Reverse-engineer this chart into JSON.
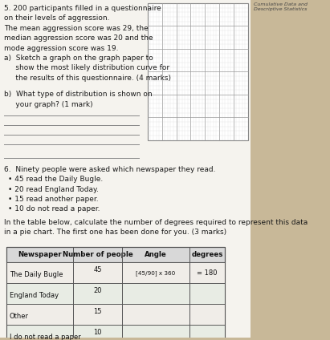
{
  "title_top": "Cumulative Data and Descriptive Statistics",
  "q5_text_lines": [
    "5. 200 participants filled in a questionnaire",
    "on their levels of aggression.",
    "The mean aggression score was 29, the",
    "median aggression score was 20 and the",
    "mode aggression score was 19.",
    "a)  Sketch a graph on the graph paper to",
    "     show the most likely distribution curve for",
    "     the results of this questionnaire. (4 marks)"
  ],
  "q5b_text_lines": [
    "b)  What type of distribution is shown on",
    "     your graph? (1 mark)"
  ],
  "q6_intro": "6.  Ninety people were asked which newspaper they read.",
  "q6_bullets": [
    "45 read the Daily Bugle.",
    "20 read England Today.",
    "15 read another paper.",
    "10 do not read a paper."
  ],
  "q6_footer_lines": [
    "In the table below, calculate the number of degrees required to represent this data",
    "in a pie chart. The first one has been done for you. (3 marks)"
  ],
  "table_headers": [
    "Newspaper",
    "Number of people",
    "Angle",
    "degrees"
  ],
  "table_rows": [
    [
      "The Daily Bugle",
      "45",
      "[45/90] x 360",
      "= 180"
    ],
    [
      "England Today",
      "20",
      "",
      ""
    ],
    [
      "Other",
      "15",
      "",
      ""
    ],
    [
      "I do not read a paper",
      "10",
      "",
      ""
    ]
  ],
  "page_bg": "#c8b898",
  "white_bg": "#f5f3ee",
  "text_color": "#1a1a1a",
  "grid_line_major": "#999999",
  "grid_line_minor": "#cccccc",
  "table_header_bg": "#d8d8d8",
  "table_row1_bg": "#f0ede8",
  "table_row2_bg": "#e8ece4",
  "answer_line_color": "#888888"
}
